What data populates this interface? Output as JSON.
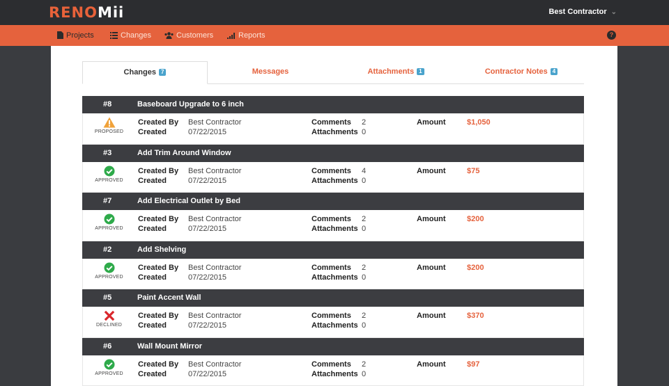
{
  "app": {
    "logo_part1": "RENO",
    "logo_part2": "Mii"
  },
  "user": {
    "name": "Best Contractor"
  },
  "nav": [
    {
      "label": "Projects",
      "icon": "file-icon"
    },
    {
      "label": "Changes",
      "icon": "list-icon"
    },
    {
      "label": "Customers",
      "icon": "users-icon"
    },
    {
      "label": "Reports",
      "icon": "bar-chart-icon"
    }
  ],
  "help_label": "?",
  "tabs": [
    {
      "label": "Changes",
      "badge": "7"
    },
    {
      "label": "Messages",
      "badge": ""
    },
    {
      "label": "Attachments",
      "badge": "1"
    },
    {
      "label": "Contractor Notes",
      "badge": "4"
    }
  ],
  "field_labels": {
    "created_by": "Created By",
    "created": "Created",
    "comments": "Comments",
    "attachments": "Attachments",
    "amount": "Amount"
  },
  "changes": [
    {
      "num": "#8",
      "title": "Baseboard Upgrade to 6 inch",
      "status": "PROPOSED",
      "created_by": "Best Contractor",
      "created": "07/22/2015",
      "comments": "2",
      "attachments": "0",
      "amount": "$1,050"
    },
    {
      "num": "#3",
      "title": "Add Trim Around Window",
      "status": "APPROVED",
      "created_by": "Best Contractor",
      "created": "07/22/2015",
      "comments": "4",
      "attachments": "0",
      "amount": "$75"
    },
    {
      "num": "#7",
      "title": "Add Electrical Outlet by Bed",
      "status": "APPROVED",
      "created_by": "Best Contractor",
      "created": "07/22/2015",
      "comments": "2",
      "attachments": "0",
      "amount": "$200"
    },
    {
      "num": "#2",
      "title": "Add Shelving",
      "status": "APPROVED",
      "created_by": "Best Contractor",
      "created": "07/22/2015",
      "comments": "2",
      "attachments": "0",
      "amount": "$200"
    },
    {
      "num": "#5",
      "title": "Paint Accent Wall",
      "status": "DECLINED",
      "created_by": "Best Contractor",
      "created": "07/22/2015",
      "comments": "2",
      "attachments": "0",
      "amount": "$370"
    },
    {
      "num": "#6",
      "title": "Wall Mount Mirror",
      "status": "APPROVED",
      "created_by": "Best Contractor",
      "created": "07/22/2015",
      "comments": "2",
      "attachments": "0",
      "amount": "$97"
    }
  ],
  "colors": {
    "accent": "#e5623d",
    "dark": "#2c2d30",
    "row_header": "#3c3d41",
    "approved": "#2eaa4a",
    "declined": "#d9262b",
    "proposed": "#f0a23a",
    "badge": "#4aa3cc"
  }
}
